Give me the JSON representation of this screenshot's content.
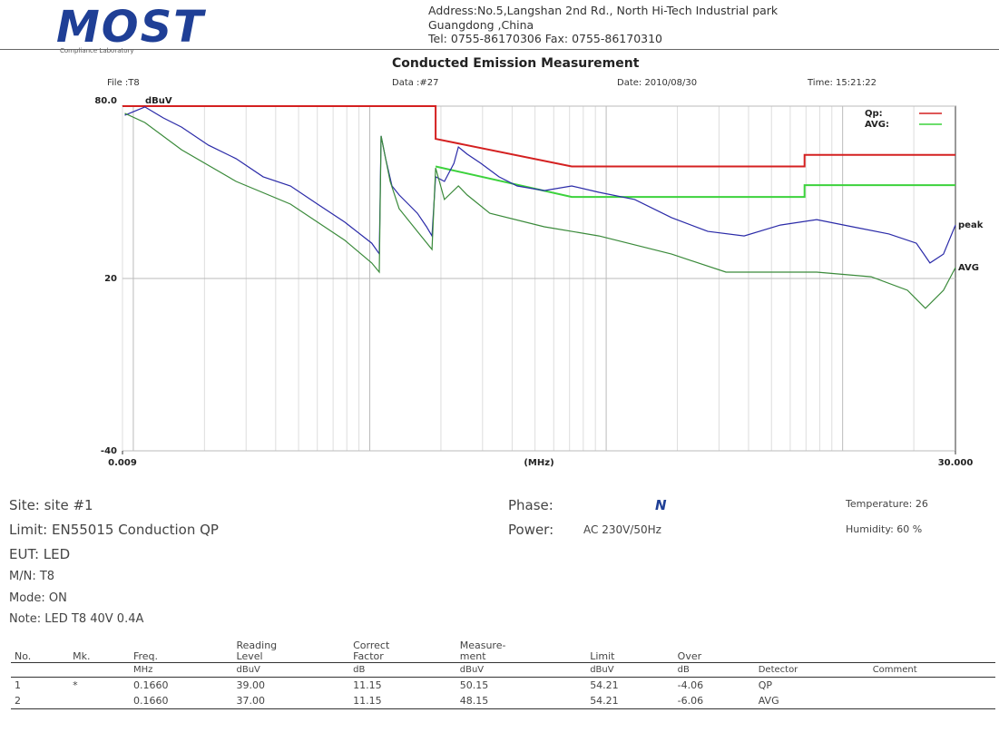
{
  "header": {
    "logo": "MOST",
    "logo_sub": "Compliance Laboratory",
    "address_1": "Address:No.5,Langshan 2nd Rd., North Hi-Tech Industrial park",
    "address_2": "Guangdong ,China",
    "address_3": "Tel: 0755-86170306  Fax: 0755-86170310"
  },
  "measurement": {
    "file": "File :T8",
    "data": "Data :#27",
    "date": "Date: 2010/08/30",
    "time": "Time: 15:21:22"
  },
  "chart_data": {
    "type": "line",
    "title": "Conducted Emission Measurement",
    "y_unit": "dBuV",
    "x_label": "(MHz)",
    "log_x": true,
    "grid": true,
    "legend": "upper right",
    "xlim": [
      0.009,
      30
    ],
    "xticks": [
      {
        "value": 0.009,
        "label": "0.009"
      },
      {
        "value": 30,
        "label": "30.000"
      }
    ],
    "ylim": [
      -40,
      80
    ],
    "yticks": [
      {
        "value": 80,
        "label": "80.0"
      },
      20,
      -40
    ],
    "series": [
      {
        "name": "Qp:",
        "color": "#d42020",
        "in_legend": true,
        "x": [
          0.009,
          0.19,
          0.19,
          0.715,
          6.9,
          6.9,
          30
        ],
        "values": [
          80,
          80,
          68.6,
          59,
          59,
          63,
          63
        ]
      },
      {
        "name": "AVG:",
        "color": "#3cd23c",
        "in_legend": true,
        "x": [
          0.19,
          0.715,
          6.9,
          6.9,
          30
        ],
        "values": [
          59,
          48.4,
          48.4,
          52.5,
          52.5
        ]
      },
      {
        "name": "peak",
        "color": "#2a2aa8",
        "in_legend": false,
        "x": [
          0.0092,
          0.0112,
          0.0134,
          0.016,
          0.0208,
          0.0272,
          0.0354,
          0.0462,
          0.0601,
          0.0784,
          0.102,
          0.1097,
          0.1117,
          0.1167,
          0.1242,
          0.1331,
          0.1456,
          0.159,
          0.1739,
          0.1833,
          0.19,
          0.207,
          0.227,
          0.237,
          0.258,
          0.295,
          0.352,
          0.42,
          0.547,
          0.715,
          0.932,
          1.32,
          1.89,
          2.69,
          3.83,
          5.45,
          7.77,
          11.0,
          15.7,
          20.5,
          23.4,
          26.7,
          30
        ],
        "values": [
          76.8,
          79.7,
          75.9,
          72.7,
          66.4,
          61.7,
          55.4,
          52.2,
          45.9,
          39.6,
          32.3,
          28.6,
          69.6,
          61.7,
          52.2,
          49.1,
          45.9,
          42.7,
          38.0,
          34.8,
          55.4,
          53.8,
          60.1,
          65.8,
          63.3,
          60.1,
          55.4,
          52.2,
          50.6,
          52.2,
          50.0,
          47.5,
          41.2,
          36.4,
          34.8,
          38.6,
          40.5,
          38.0,
          35.5,
          32.3,
          25.4,
          28.5,
          38.6
        ]
      },
      {
        "name": "AVG",
        "color": "#3a8a3a",
        "in_legend": false,
        "x": [
          0.0092,
          0.0112,
          0.016,
          0.0272,
          0.0462,
          0.0784,
          0.102,
          0.1097,
          0.1117,
          0.122,
          0.1331,
          0.159,
          0.1833,
          0.19,
          0.207,
          0.237,
          0.258,
          0.322,
          0.547,
          0.932,
          1.89,
          3.21,
          5.45,
          7.77,
          13.2,
          18.8,
          22.4,
          26.7,
          30
        ],
        "values": [
          77.5,
          74.3,
          64.8,
          53.8,
          45.9,
          33.3,
          25.4,
          22.2,
          69.6,
          53.8,
          44.3,
          36.4,
          30.1,
          58.5,
          47.5,
          52.2,
          49.1,
          42.7,
          38.0,
          34.8,
          28.5,
          22.2,
          22.2,
          22.2,
          20.6,
          15.9,
          9.6,
          15.9,
          23.8
        ]
      }
    ]
  },
  "info": {
    "site": "Site: site #1",
    "limit": "Limit: EN55015 Conduction QP",
    "eut": "EUT: LED",
    "mn": "M/N: T8",
    "mode": "Mode: ON",
    "note": "Note: LED T8 40V 0.4A",
    "phase_label": "Phase:",
    "phase": "N",
    "power_label": "Power:",
    "power": "AC 230V/50Hz",
    "temperature": "Temperature: 26",
    "humidity": "Humidity: 60 %"
  },
  "table": {
    "headers": [
      "No.",
      "Mk.",
      "Freq.",
      "Reading\nLevel",
      "Correct\nFactor",
      "Measure-\nment",
      "Limit",
      "Over"
    ],
    "units": [
      "MHz",
      "dBuV",
      "dB",
      "dBuV",
      "dBuV",
      "dB",
      "Detector",
      "Comment"
    ],
    "rows": [
      [
        "1",
        "*",
        "0.1660",
        "39.00",
        "11.15",
        "50.15",
        "54.21",
        "-4.06",
        "QP"
      ],
      [
        "2",
        "",
        "0.1660",
        "37.00",
        "11.15",
        "48.15",
        "54.21",
        "-6.06",
        "AVG"
      ]
    ]
  }
}
